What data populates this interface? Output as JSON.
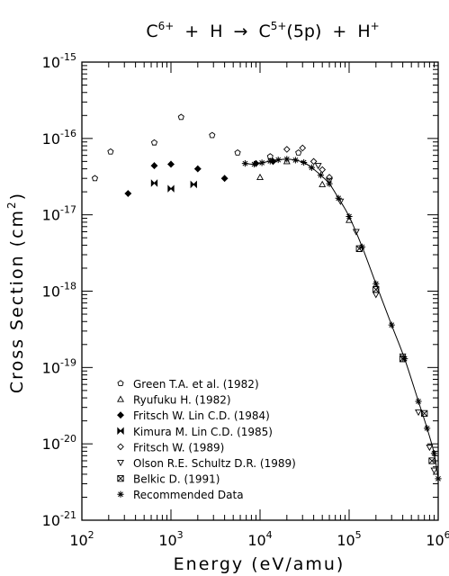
{
  "chart_data": {
    "type": "scatter",
    "title_parts": {
      "c": "C",
      "c_charge": "6+",
      "plus1": "+",
      "h": "H",
      "arrow": "→",
      "c2": "C",
      "c2_charge": "5+",
      "state": "(5p)",
      "plus2": "+",
      "h2": "H",
      "h2_charge": "+"
    },
    "xlabel": "Energy (eV/amu)",
    "ylabel": "Cross Section (cm",
    "ylabel_sup": "2",
    "ylabel_end": ")",
    "x_scale": "log",
    "y_scale": "log",
    "xlim": [
      100,
      1000000
    ],
    "ylim": [
      1e-21,
      1e-15
    ],
    "x_ticks": [
      {
        "base": "10",
        "exp": "2",
        "value": 100
      },
      {
        "base": "10",
        "exp": "3",
        "value": 1000
      },
      {
        "base": "10",
        "exp": "4",
        "value": 10000
      },
      {
        "base": "10",
        "exp": "5",
        "value": 100000
      },
      {
        "base": "10",
        "exp": "6",
        "value": 1000000
      }
    ],
    "y_ticks": [
      {
        "base": "10",
        "exp": "-15",
        "value": 1e-15
      },
      {
        "base": "10",
        "exp": "-16",
        "value": 1e-16
      },
      {
        "base": "10",
        "exp": "-17",
        "value": 1e-17
      },
      {
        "base": "10",
        "exp": "-18",
        "value": 1e-18
      },
      {
        "base": "10",
        "exp": "-19",
        "value": 1e-19
      },
      {
        "base": "10",
        "exp": "-20",
        "value": 1e-20
      },
      {
        "base": "10",
        "exp": "-21",
        "value": 1e-21
      }
    ],
    "grid": false,
    "legend_position": "bottom-left",
    "series": [
      {
        "name": "Green T.A. et al. (1982)",
        "marker": "pentagon",
        "points": [
          [
            140,
            3e-17
          ],
          [
            210,
            6.7e-17
          ],
          [
            650,
            8.8e-17
          ],
          [
            1300,
            1.9e-16
          ],
          [
            2900,
            1.1e-16
          ],
          [
            5600,
            6.5e-17
          ],
          [
            13000,
            5.8e-17
          ],
          [
            27000,
            6.5e-17
          ]
        ]
      },
      {
        "name": "Ryufuku H. (1982)",
        "marker": "triangle-up",
        "points": [
          [
            10000,
            3.1e-17
          ],
          [
            20000,
            5e-17
          ],
          [
            50000,
            2.5e-17
          ],
          [
            100000,
            8.5e-18
          ]
        ]
      },
      {
        "name": "Fritsch W. Lin C.D. (1984)",
        "marker": "diamond-plus",
        "points": [
          [
            330,
            1.9e-17
          ],
          [
            650,
            4.4e-17
          ],
          [
            1000,
            4.6e-17
          ],
          [
            2000,
            4e-17
          ],
          [
            4000,
            3e-17
          ],
          [
            9000,
            4.7e-17
          ],
          [
            14000,
            5e-17
          ]
        ]
      },
      {
        "name": "Kimura M. Lin C.D. (1985)",
        "marker": "bowtie",
        "points": [
          [
            650,
            2.6e-17
          ],
          [
            1000,
            2.2e-17
          ],
          [
            1800,
            2.5e-17
          ]
        ]
      },
      {
        "name": "Fritsch W. (1989)",
        "marker": "diamond",
        "points": [
          [
            20000,
            7.2e-17
          ],
          [
            30000,
            7.5e-17
          ],
          [
            40000,
            5e-17
          ],
          [
            50000,
            3.9e-17
          ],
          [
            60000,
            3.1e-17
          ]
        ]
      },
      {
        "name": "Olson R.E. Schultz D.R. (1989)",
        "marker": "triangle-down",
        "points": [
          [
            45000,
            4.4e-17
          ],
          [
            60000,
            2.8e-17
          ],
          [
            80000,
            1.5e-17
          ],
          [
            120000,
            6e-18
          ],
          [
            200000,
            9e-19
          ],
          [
            400000,
            1.4e-19
          ],
          [
            600000,
            2.6e-20
          ],
          [
            800000,
            9e-21
          ],
          [
            900000,
            4.5e-21
          ]
        ]
      },
      {
        "name": "Belkic D. (1991)",
        "marker": "square",
        "points": [
          [
            130000,
            3.6e-18
          ],
          [
            200000,
            1.05e-18
          ],
          [
            400000,
            1.3e-19
          ],
          [
            700000,
            2.5e-20
          ],
          [
            850000,
            6e-21
          ]
        ]
      },
      {
        "name": "Recommended Data",
        "marker": "asterisk",
        "line": true,
        "points": [
          [
            6800,
            4.7e-17
          ],
          [
            8600,
            4.6e-17
          ],
          [
            10500,
            4.8e-17
          ],
          [
            13000,
            5.05e-17
          ],
          [
            16000,
            5.25e-17
          ],
          [
            20000,
            5.35e-17
          ],
          [
            25000,
            5.2e-17
          ],
          [
            31000,
            4.85e-17
          ],
          [
            38000,
            4.15e-17
          ],
          [
            48000,
            3.3e-17
          ],
          [
            60000,
            2.55e-17
          ],
          [
            76000,
            1.65e-17
          ],
          [
            100000,
            9.5e-18
          ],
          [
            140000,
            3.8e-18
          ],
          [
            200000,
            1.25e-18
          ],
          [
            300000,
            3.6e-19
          ],
          [
            420000,
            1.3e-19
          ],
          [
            600000,
            3.6e-20
          ],
          [
            750000,
            1.6e-20
          ],
          [
            900000,
            7.5e-21
          ],
          [
            1000000,
            3.5e-21
          ]
        ]
      }
    ]
  }
}
